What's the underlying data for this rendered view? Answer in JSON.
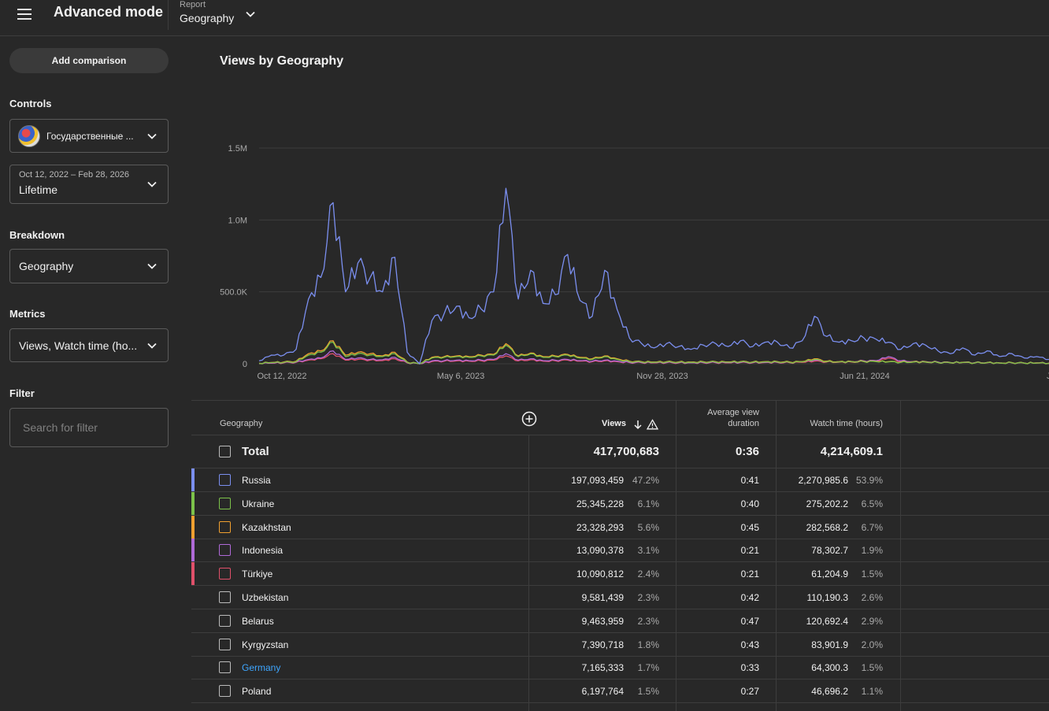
{
  "header": {
    "app_title": "Advanced mode",
    "report_label": "Report",
    "report_value": "Geography"
  },
  "sidebar": {
    "add_comparison": "Add comparison",
    "controls_label": "Controls",
    "channel_name": "Государственные ...",
    "date_range": "Oct 12, 2022 – Feb 28, 2026",
    "date_preset": "Lifetime",
    "breakdown_label": "Breakdown",
    "breakdown_value": "Geography",
    "metrics_label": "Metrics",
    "metrics_value": "Views, Watch time (ho...",
    "filter_label": "Filter",
    "filter_placeholder": "Search for filter"
  },
  "chart_title": "Views by Geography",
  "chart_data": {
    "type": "line",
    "y_ticks": [
      "0",
      "500.0K",
      "1.0M",
      "1.5M"
    ],
    "ylim": [
      0,
      1500000
    ],
    "x_ticks": [
      "Oct 12, 2022",
      "May 6, 2023",
      "Nov 28, 2023",
      "Jun 21, 2024",
      "Ja"
    ],
    "series": [
      {
        "name": "Russia",
        "color": "#7b8ff0",
        "values": [
          20000,
          60000,
          60000,
          100000,
          450000,
          600000,
          1120000,
          500000,
          700000,
          600000,
          500000,
          740000,
          80000,
          0,
          300000,
          350000,
          400000,
          320000,
          380000,
          500000,
          1220000,
          450000,
          650000,
          420000,
          480000,
          760000,
          440000,
          330000,
          650000,
          380000,
          180000,
          140000,
          110000,
          140000,
          120000,
          100000,
          130000,
          140000,
          120000,
          160000,
          120000,
          150000,
          150000,
          110000,
          160000,
          330000,
          190000,
          150000,
          160000,
          180000,
          170000,
          150000,
          100000,
          140000,
          130000,
          90000,
          70000,
          110000,
          60000,
          90000,
          50000,
          70000,
          40000,
          50000,
          30000
        ]
      },
      {
        "name": "Ukraine",
        "color": "#7cc24a",
        "values": [
          3000,
          8000,
          10000,
          15000,
          60000,
          80000,
          150000,
          50000,
          70000,
          60000,
          50000,
          70000,
          10000,
          0,
          40000,
          45000,
          50000,
          45000,
          55000,
          60000,
          130000,
          50000,
          70000,
          45000,
          50000,
          60000,
          40000,
          30000,
          50000,
          30000,
          15000,
          12000,
          10000,
          12000,
          11000,
          10000,
          12000,
          12000,
          11000,
          13000,
          11000,
          13000,
          13000,
          10000,
          13000,
          30000,
          15000,
          13000,
          14000,
          15000,
          15000,
          13000,
          10000,
          12000,
          12000,
          9000,
          7000,
          9000,
          6000,
          8000,
          5000,
          7000,
          4000,
          5000,
          3000
        ]
      },
      {
        "name": "Kazakhstan",
        "color": "#f0a030",
        "values": [
          4000,
          9000,
          12000,
          18000,
          70000,
          90000,
          160000,
          60000,
          80000,
          70000,
          55000,
          80000,
          12000,
          0,
          45000,
          50000,
          55000,
          50000,
          60000,
          65000,
          140000,
          55000,
          75000,
          50000,
          55000,
          65000,
          45000,
          35000,
          55000,
          35000,
          18000,
          14000,
          12000,
          14000,
          13000,
          12000,
          14000,
          14000,
          13000,
          15000,
          13000,
          15000,
          15000,
          12000,
          15000,
          35000,
          18000,
          15000,
          16000,
          17000,
          17000,
          15000,
          12000,
          14000,
          14000,
          10000,
          8000,
          10000,
          7000,
          9000,
          6000,
          8000,
          5000,
          6000,
          4000
        ]
      },
      {
        "name": "Indonesia",
        "color": "#b06ad8",
        "values": [
          2000,
          5000,
          8000,
          12000,
          30000,
          40000,
          90000,
          30000,
          40000,
          30000,
          28000,
          45000,
          8000,
          0,
          20000,
          22000,
          25000,
          22000,
          26000,
          30000,
          70000,
          25000,
          35000,
          22000,
          25000,
          30000,
          22000,
          18000,
          25000,
          18000,
          10000,
          9000,
          8000,
          9000,
          8000,
          7000,
          9000,
          9000,
          8000,
          10000,
          9000,
          10000,
          11000,
          9000,
          14000,
          25000,
          16000,
          14000,
          16000,
          20000,
          22000,
          50000,
          20000,
          16000,
          15000,
          12000,
          9000,
          10000,
          8000,
          9000,
          6000,
          7000,
          5000,
          6000,
          4000
        ]
      },
      {
        "name": "Türkiye",
        "color": "#e0506a",
        "values": [
          1500,
          4000,
          6000,
          10000,
          25000,
          35000,
          70000,
          25000,
          30000,
          25000,
          22000,
          35000,
          6000,
          0,
          15000,
          18000,
          20000,
          18000,
          20000,
          25000,
          55000,
          20000,
          28000,
          18000,
          20000,
          25000,
          18000,
          14000,
          20000,
          14000,
          8000,
          7000,
          6000,
          7000,
          6000,
          6000,
          7000,
          7000,
          6000,
          8000,
          7000,
          8000,
          9000,
          7000,
          10000,
          18000,
          12000,
          11000,
          12000,
          14000,
          18000,
          40000,
          15000,
          12000,
          11000,
          9000,
          7000,
          8000,
          6000,
          7000,
          5000,
          6000,
          4000,
          5000,
          3000
        ]
      }
    ]
  },
  "table": {
    "headers": {
      "geography": "Geography",
      "views": "Views",
      "avg_duration_line1": "Average view",
      "avg_duration_line2": "duration",
      "watch_time": "Watch time (hours)"
    },
    "total": {
      "name": "Total",
      "views": "417,700,683",
      "duration": "0:36",
      "watch": "4,214,609.1"
    },
    "rows": [
      {
        "name": "Russia",
        "color": "#7b8ff0",
        "views": "197,093,459",
        "views_pct": "47.2%",
        "duration": "0:41",
        "watch": "2,270,985.6",
        "watch_pct": "53.9%"
      },
      {
        "name": "Ukraine",
        "color": "#7cc24a",
        "views": "25,345,228",
        "views_pct": "6.1%",
        "duration": "0:40",
        "watch": "275,202.2",
        "watch_pct": "6.5%"
      },
      {
        "name": "Kazakhstan",
        "color": "#f0a030",
        "views": "23,328,293",
        "views_pct": "5.6%",
        "duration": "0:45",
        "watch": "282,568.2",
        "watch_pct": "6.7%"
      },
      {
        "name": "Indonesia",
        "color": "#b06ad8",
        "views": "13,090,378",
        "views_pct": "3.1%",
        "duration": "0:21",
        "watch": "78,302.7",
        "watch_pct": "1.9%"
      },
      {
        "name": "Türkiye",
        "color": "#e0506a",
        "views": "10,090,812",
        "views_pct": "2.4%",
        "duration": "0:21",
        "watch": "61,204.9",
        "watch_pct": "1.5%"
      },
      {
        "name": "Uzbekistan",
        "color": "",
        "views": "9,581,439",
        "views_pct": "2.3%",
        "duration": "0:42",
        "watch": "110,190.3",
        "watch_pct": "2.6%"
      },
      {
        "name": "Belarus",
        "color": "",
        "views": "9,463,959",
        "views_pct": "2.3%",
        "duration": "0:47",
        "watch": "120,692.4",
        "watch_pct": "2.9%"
      },
      {
        "name": "Kyrgyzstan",
        "color": "",
        "views": "7,390,718",
        "views_pct": "1.8%",
        "duration": "0:43",
        "watch": "83,901.9",
        "watch_pct": "2.0%"
      },
      {
        "name": "Germany",
        "color": "",
        "views": "7,165,333",
        "views_pct": "1.7%",
        "duration": "0:33",
        "watch": "64,300.3",
        "watch_pct": "1.5%",
        "link": true
      },
      {
        "name": "Poland",
        "color": "",
        "views": "6,197,764",
        "views_pct": "1.5%",
        "duration": "0:27",
        "watch": "46,696.2",
        "watch_pct": "1.1%"
      }
    ]
  }
}
